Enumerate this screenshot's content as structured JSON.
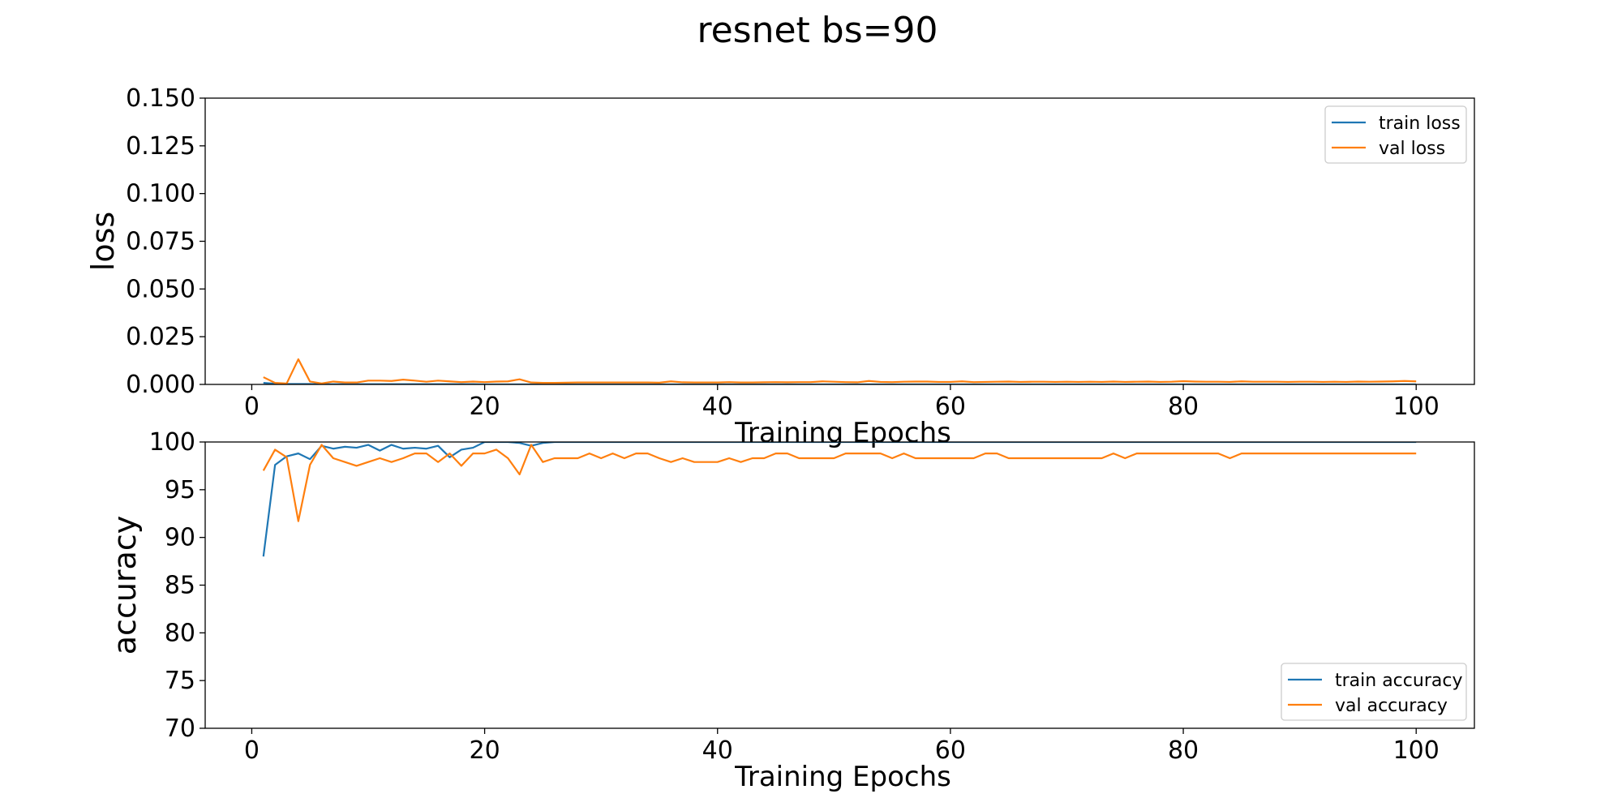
{
  "title": "resnet bs=90",
  "colors": {
    "train": "#1f77b4",
    "val": "#ff7f0e",
    "frame": "#000000",
    "legend_border": "#cccccc"
  },
  "chart_data": [
    {
      "type": "line",
      "ylabel": "loss",
      "xlabel": "Training Epochs",
      "xlim": [
        -4,
        105
      ],
      "ylim": [
        0,
        0.15
      ],
      "xticks": [
        0,
        20,
        40,
        60,
        80,
        100
      ],
      "xtick_labels": [
        "0",
        "20",
        "40",
        "60",
        "80",
        "100"
      ],
      "yticks": [
        0,
        0.025,
        0.05,
        0.075,
        0.1,
        0.125,
        0.15
      ],
      "ytick_labels": [
        "0.000",
        "0.025",
        "0.050",
        "0.075",
        "0.100",
        "0.125",
        "0.150"
      ],
      "grid": false,
      "legend_position": "upper right",
      "series": [
        {
          "name": "train loss",
          "color_key": "train",
          "x": [
            1,
            2,
            3,
            4,
            5,
            6,
            7,
            8,
            9,
            10,
            11,
            12,
            13,
            14,
            15,
            16,
            17,
            18,
            19,
            20,
            21,
            22,
            23,
            24,
            25,
            26,
            27,
            28,
            29,
            30,
            31,
            32,
            33,
            34,
            35,
            36,
            37,
            38,
            39,
            40,
            41,
            42,
            43,
            44,
            45,
            46,
            47,
            48,
            49,
            50,
            51,
            52,
            53,
            54,
            55,
            56,
            57,
            58,
            59,
            60,
            61,
            62,
            63,
            64,
            65,
            66,
            67,
            68,
            69,
            70,
            71,
            72,
            73,
            74,
            75,
            76,
            77,
            78,
            79,
            80,
            81,
            82,
            83,
            84,
            85,
            86,
            87,
            88,
            89,
            90,
            91,
            92,
            93,
            94,
            95,
            96,
            97,
            98,
            99,
            100
          ],
          "y": [
            0.0008,
            0.0004,
            0.0002,
            0.0002,
            0.0002,
            0.0001,
            0.0001,
            0.0001,
            0.0001,
            0.0001,
            0.0001,
            0.0001,
            0.0001,
            0.0001,
            0.0001,
            0.0001,
            0.0001,
            0.0001,
            0.0001,
            0.0,
            0.0,
            0.0,
            0.0,
            0.0,
            0.0,
            0.0,
            0.0,
            0.0,
            0.0,
            0.0,
            0.0,
            0.0,
            0.0,
            0.0,
            0.0,
            0.0,
            0.0,
            0.0,
            0.0,
            0.0,
            0.0,
            0.0,
            0.0,
            0.0,
            0.0,
            0.0,
            0.0,
            0.0,
            0.0,
            0.0,
            0.0,
            0.0,
            0.0,
            0.0,
            0.0,
            0.0,
            0.0,
            0.0,
            0.0,
            0.0,
            0.0,
            0.0,
            0.0,
            0.0,
            0.0,
            0.0,
            0.0,
            0.0,
            0.0,
            0.0,
            0.0,
            0.0,
            0.0,
            0.0,
            0.0,
            0.0,
            0.0,
            0.0,
            0.0,
            0.0,
            0.0,
            0.0,
            0.0,
            0.0,
            0.0,
            0.0,
            0.0,
            0.0,
            0.0,
            0.0,
            0.0,
            0.0,
            0.0,
            0.0,
            0.0,
            0.0,
            0.0,
            0.0,
            0.0,
            0.0
          ]
        },
        {
          "name": "val loss",
          "color_key": "val",
          "x": [
            1,
            2,
            3,
            4,
            5,
            6,
            7,
            8,
            9,
            10,
            11,
            12,
            13,
            14,
            15,
            16,
            17,
            18,
            19,
            20,
            21,
            22,
            23,
            24,
            25,
            26,
            27,
            28,
            29,
            30,
            31,
            32,
            33,
            34,
            35,
            36,
            37,
            38,
            39,
            40,
            41,
            42,
            43,
            44,
            45,
            46,
            47,
            48,
            49,
            50,
            51,
            52,
            53,
            54,
            55,
            56,
            57,
            58,
            59,
            60,
            61,
            62,
            63,
            64,
            65,
            66,
            67,
            68,
            69,
            70,
            71,
            72,
            73,
            74,
            75,
            76,
            77,
            78,
            79,
            80,
            81,
            82,
            83,
            84,
            85,
            86,
            87,
            88,
            89,
            90,
            91,
            92,
            93,
            94,
            95,
            96,
            97,
            98,
            99,
            100
          ],
          "y": [
            0.0038,
            0.0008,
            0.0005,
            0.0132,
            0.0015,
            0.0005,
            0.0015,
            0.001,
            0.001,
            0.002,
            0.002,
            0.0018,
            0.0025,
            0.002,
            0.0014,
            0.002,
            0.0016,
            0.0012,
            0.0015,
            0.0012,
            0.0015,
            0.0016,
            0.0027,
            0.001,
            0.0008,
            0.0008,
            0.0009,
            0.001,
            0.001,
            0.001,
            0.001,
            0.001,
            0.001,
            0.001,
            0.0009,
            0.0016,
            0.0011,
            0.001,
            0.001,
            0.001,
            0.0012,
            0.001,
            0.001,
            0.0011,
            0.0012,
            0.0011,
            0.0012,
            0.0012,
            0.0016,
            0.0014,
            0.0012,
            0.0011,
            0.0018,
            0.0013,
            0.0012,
            0.0014,
            0.0015,
            0.0015,
            0.0013,
            0.0013,
            0.0016,
            0.0012,
            0.0013,
            0.0014,
            0.0015,
            0.0013,
            0.0014,
            0.0014,
            0.0013,
            0.0014,
            0.0013,
            0.0014,
            0.0013,
            0.0015,
            0.0013,
            0.0014,
            0.0015,
            0.0013,
            0.0014,
            0.0017,
            0.0015,
            0.0014,
            0.0014,
            0.0013,
            0.0016,
            0.0014,
            0.0014,
            0.0014,
            0.0013,
            0.0014,
            0.0014,
            0.0013,
            0.0014,
            0.0013,
            0.0015,
            0.0014,
            0.0015,
            0.0016,
            0.0018,
            0.0016
          ]
        }
      ]
    },
    {
      "type": "line",
      "ylabel": "accuracy",
      "xlabel": "Training Epochs",
      "xlim": [
        -4,
        105
      ],
      "ylim": [
        70,
        100
      ],
      "xticks": [
        0,
        20,
        40,
        60,
        80,
        100
      ],
      "xtick_labels": [
        "0",
        "20",
        "40",
        "60",
        "80",
        "100"
      ],
      "yticks": [
        70,
        75,
        80,
        85,
        90,
        95,
        100
      ],
      "ytick_labels": [
        "70",
        "75",
        "80",
        "85",
        "90",
        "95",
        "100"
      ],
      "grid": false,
      "legend_position": "lower right",
      "series": [
        {
          "name": "train accuracy",
          "color_key": "train",
          "x": [
            1,
            2,
            3,
            4,
            5,
            6,
            7,
            8,
            9,
            10,
            11,
            12,
            13,
            14,
            15,
            16,
            17,
            18,
            19,
            20,
            21,
            22,
            23,
            24,
            25,
            26,
            27,
            28,
            29,
            30,
            31,
            32,
            33,
            34,
            35,
            36,
            37,
            38,
            39,
            40,
            41,
            42,
            43,
            44,
            45,
            46,
            47,
            48,
            49,
            50,
            51,
            52,
            53,
            54,
            55,
            56,
            57,
            58,
            59,
            60,
            61,
            62,
            63,
            64,
            65,
            66,
            67,
            68,
            69,
            70,
            71,
            72,
            73,
            74,
            75,
            76,
            77,
            78,
            79,
            80,
            81,
            82,
            83,
            84,
            85,
            86,
            87,
            88,
            89,
            90,
            91,
            92,
            93,
            94,
            95,
            96,
            97,
            98,
            99,
            100
          ],
          "y": [
            88.0,
            97.6,
            98.5,
            98.8,
            98.2,
            99.6,
            99.3,
            99.5,
            99.4,
            99.7,
            99.1,
            99.7,
            99.3,
            99.4,
            99.3,
            99.6,
            98.4,
            99.2,
            99.4,
            100.0,
            100.0,
            100.0,
            99.9,
            99.6,
            99.9,
            100.0,
            100.0,
            100.0,
            100.0,
            100.0,
            100.0,
            100.0,
            100.0,
            100.0,
            100.0,
            100.0,
            100.0,
            100.0,
            100.0,
            100.0,
            100.0,
            100.0,
            100.0,
            100.0,
            100.0,
            100.0,
            100.0,
            100.0,
            100.0,
            100.0,
            100.0,
            100.0,
            100.0,
            100.0,
            100.0,
            100.0,
            100.0,
            100.0,
            100.0,
            100.0,
            100.0,
            100.0,
            100.0,
            100.0,
            100.0,
            100.0,
            100.0,
            100.0,
            100.0,
            100.0,
            100.0,
            100.0,
            100.0,
            100.0,
            100.0,
            100.0,
            100.0,
            100.0,
            100.0,
            100.0,
            100.0,
            100.0,
            100.0,
            100.0,
            100.0,
            100.0,
            100.0,
            100.0,
            100.0,
            100.0,
            100.0,
            100.0,
            100.0,
            100.0,
            100.0,
            100.0,
            100.0,
            100.0,
            100.0,
            100.0
          ]
        },
        {
          "name": "val accuracy",
          "color_key": "val",
          "x": [
            1,
            2,
            3,
            4,
            5,
            6,
            7,
            8,
            9,
            10,
            11,
            12,
            13,
            14,
            15,
            16,
            17,
            18,
            19,
            20,
            21,
            22,
            23,
            24,
            25,
            26,
            27,
            28,
            29,
            30,
            31,
            32,
            33,
            34,
            35,
            36,
            37,
            38,
            39,
            40,
            41,
            42,
            43,
            44,
            45,
            46,
            47,
            48,
            49,
            50,
            51,
            52,
            53,
            54,
            55,
            56,
            57,
            58,
            59,
            60,
            61,
            62,
            63,
            64,
            65,
            66,
            67,
            68,
            69,
            70,
            71,
            72,
            73,
            74,
            75,
            76,
            77,
            78,
            79,
            80,
            81,
            82,
            83,
            84,
            85,
            86,
            87,
            88,
            89,
            90,
            91,
            92,
            93,
            94,
            95,
            96,
            97,
            98,
            99,
            100
          ],
          "y": [
            97.0,
            99.2,
            98.4,
            91.7,
            97.6,
            99.7,
            98.3,
            97.9,
            97.5,
            97.9,
            98.3,
            97.9,
            98.3,
            98.8,
            98.8,
            97.9,
            98.8,
            97.5,
            98.8,
            98.8,
            99.2,
            98.3,
            96.6,
            99.7,
            97.9,
            98.3,
            98.3,
            98.3,
            98.8,
            98.3,
            98.8,
            98.3,
            98.8,
            98.8,
            98.3,
            97.9,
            98.3,
            97.9,
            97.9,
            97.9,
            98.3,
            97.9,
            98.3,
            98.3,
            98.8,
            98.8,
            98.3,
            98.3,
            98.3,
            98.3,
            98.8,
            98.8,
            98.8,
            98.8,
            98.3,
            98.8,
            98.3,
            98.3,
            98.3,
            98.3,
            98.3,
            98.3,
            98.8,
            98.8,
            98.3,
            98.3,
            98.3,
            98.3,
            98.3,
            98.3,
            98.3,
            98.3,
            98.3,
            98.8,
            98.3,
            98.8,
            98.8,
            98.8,
            98.8,
            98.8,
            98.8,
            98.8,
            98.8,
            98.3,
            98.8,
            98.8,
            98.8,
            98.8,
            98.8,
            98.8,
            98.8,
            98.8,
            98.8,
            98.8,
            98.8,
            98.8,
            98.8,
            98.8,
            98.8,
            98.8
          ]
        }
      ]
    }
  ]
}
